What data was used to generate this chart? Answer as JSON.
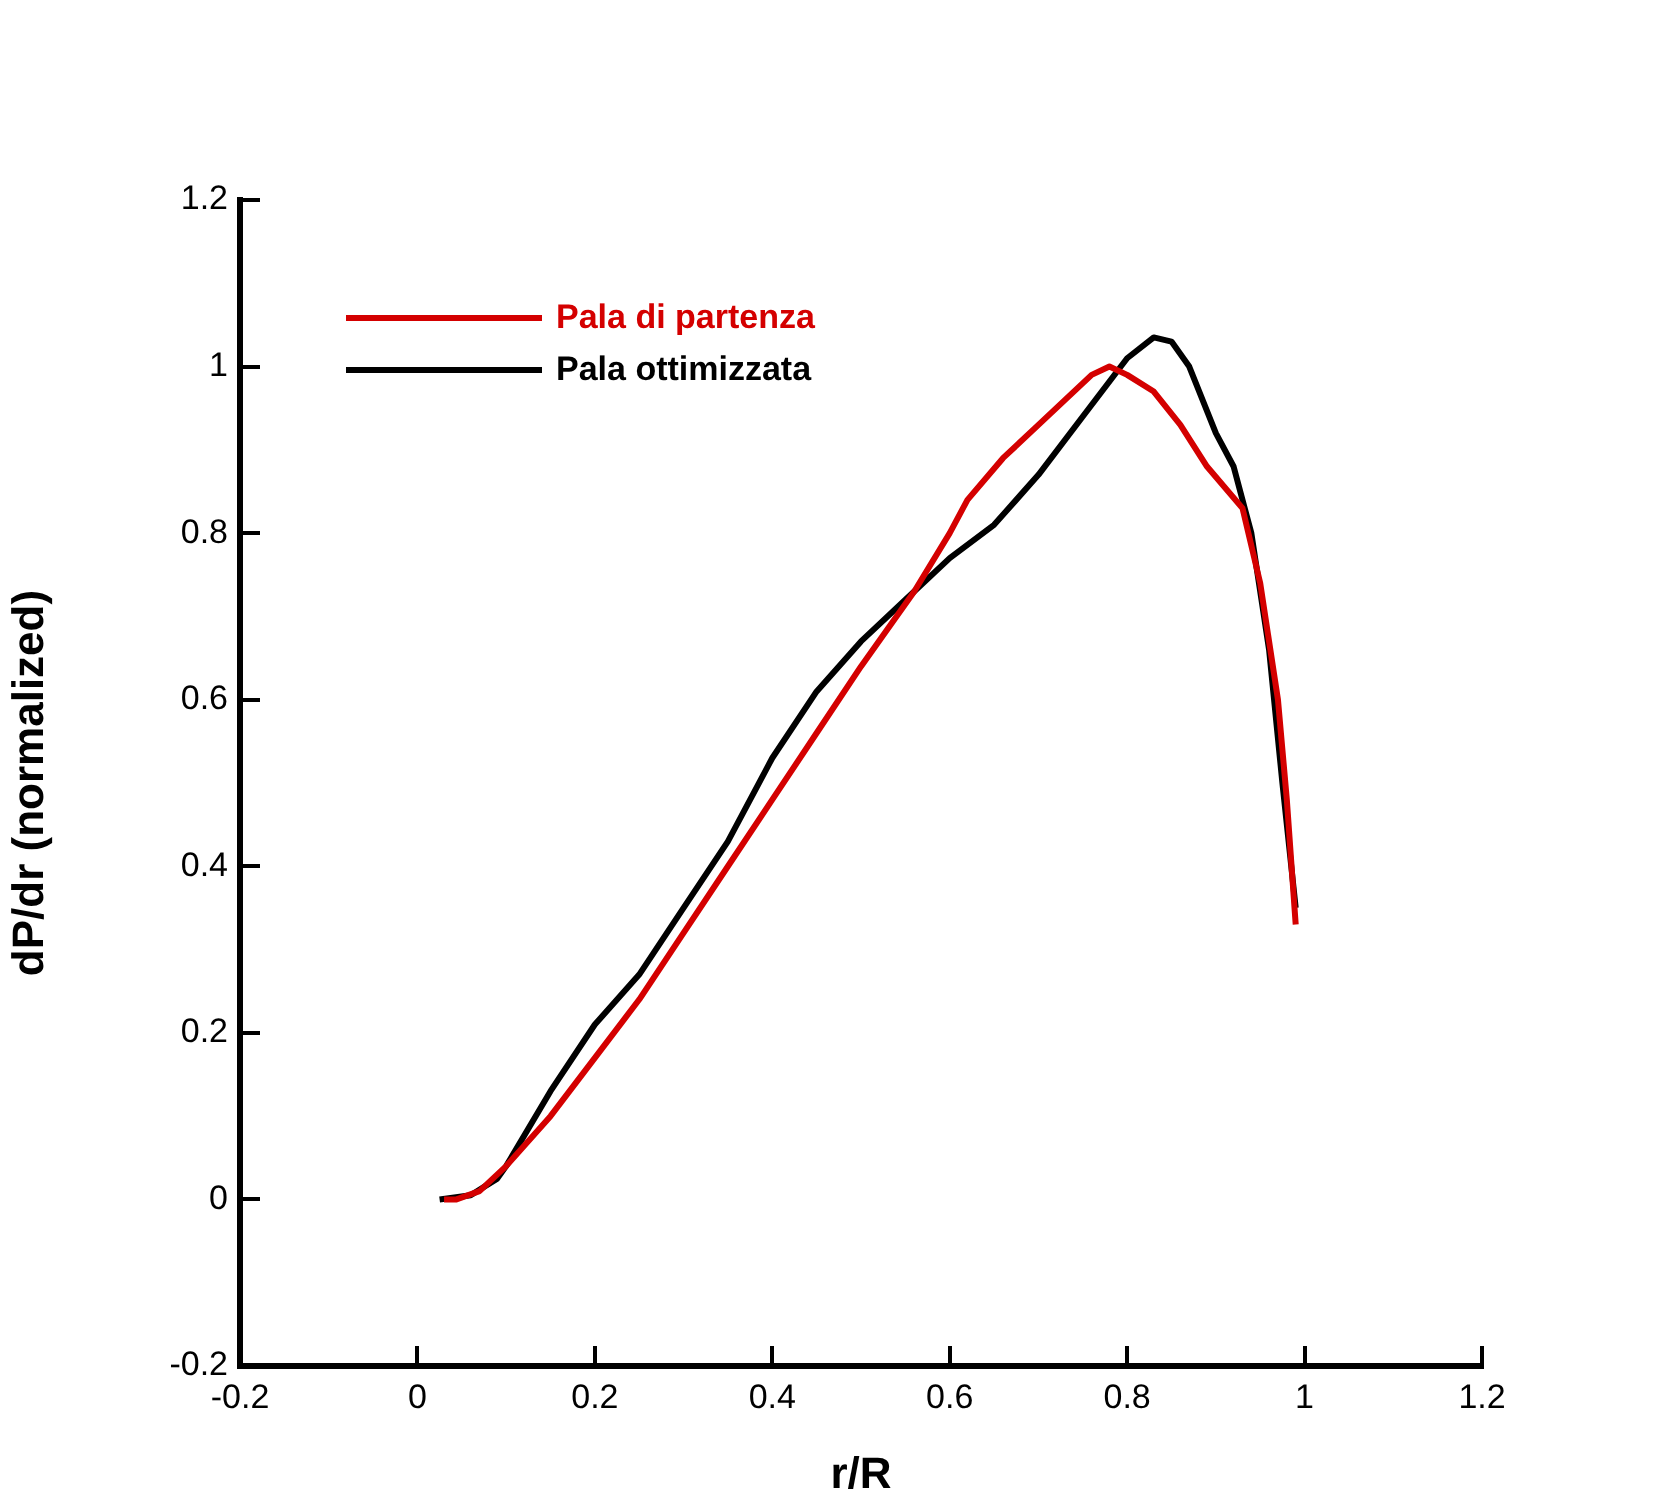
{
  "chart_data": {
    "type": "line",
    "xlabel": "r/R",
    "ylabel": "dP/dr (normalized)",
    "xlim": [
      -0.2,
      1.2
    ],
    "xticks": [
      -0.2,
      0,
      0.2,
      0.4,
      0.6,
      0.8,
      1,
      1.2
    ],
    "ylim": [
      -0.2,
      1.2
    ],
    "yticks": [
      -0.2,
      0,
      0.2,
      0.4,
      0.6,
      0.8,
      1,
      1.2
    ],
    "grid": false,
    "legend": "top left",
    "marker": "none",
    "line_style": "solid",
    "series": [
      {
        "name": "Pala di partenza",
        "color": "#d40000",
        "x": [
          0.03,
          0.044,
          0.07,
          0.1,
          0.15,
          0.2,
          0.25,
          0.3,
          0.35,
          0.4,
          0.45,
          0.5,
          0.56,
          0.6,
          0.62,
          0.66,
          0.7,
          0.73,
          0.76,
          0.78,
          0.8,
          0.83,
          0.86,
          0.89,
          0.93,
          0.95,
          0.97,
          0.98,
          0.99
        ],
        "values": [
          0,
          0,
          0.01,
          0.04,
          0.1,
          0.17,
          0.24,
          0.32,
          0.4,
          0.48,
          0.56,
          0.64,
          0.73,
          0.8,
          0.84,
          0.89,
          0.93,
          0.96,
          0.99,
          1,
          0.99,
          0.97,
          0.93,
          0.88,
          0.83,
          0.74,
          0.6,
          0.48,
          0.33
        ]
      },
      {
        "name": "Pala ottimizzata",
        "color": "#000000",
        "x": [
          0.025,
          0.06,
          0.09,
          0.1,
          0.15,
          0.2,
          0.25,
          0.3,
          0.35,
          0.4,
          0.45,
          0.5,
          0.55,
          0.6,
          0.65,
          0.7,
          0.75,
          0.8,
          0.83,
          0.85,
          0.87,
          0.9,
          0.92,
          0.94,
          0.96,
          0.975,
          0.99
        ],
        "values": [
          0,
          0.005,
          0.025,
          0.04,
          0.13,
          0.21,
          0.27,
          0.35,
          0.43,
          0.53,
          0.61,
          0.67,
          0.72,
          0.77,
          0.81,
          0.87,
          0.94,
          1.01,
          1.035,
          1.03,
          1,
          0.92,
          0.88,
          0.8,
          0.66,
          0.5,
          0.35
        ]
      }
    ]
  }
}
